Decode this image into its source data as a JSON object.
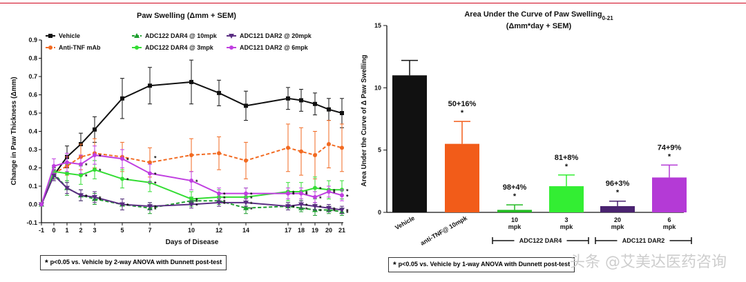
{
  "left_title": "Paw Swelling (Δmm + SEM)",
  "right_title_main": "Area  Under the Curve of Paw Swelling",
  "right_title_sub": "0-21",
  "right_title_line2": "(Δmm*day + SEM)",
  "left_note": "p<0.05 vs. Vehicle by 2-way ANOVA with Dunnett post-test",
  "right_note": "p<0.05 vs. Vehicle by 1-way ANOVA with Dunnett post-test",
  "note_star": "*",
  "watermark": "头条 @艾美达医药咨询",
  "chart_data": [
    {
      "type": "line",
      "title": "Paw Swelling (Δmm + SEM)",
      "xlabel": "Days of Disease",
      "ylabel": "Change in Paw Thickness (Δmm)",
      "xlim": [
        -1,
        21.5
      ],
      "ylim": [
        -0.1,
        0.9
      ],
      "x_ticks": [
        -1,
        0,
        1,
        2,
        3,
        5,
        7,
        10,
        12,
        14,
        17,
        18,
        19,
        20,
        21
      ],
      "y_ticks": [
        -0.1,
        0.0,
        0.1,
        0.2,
        0.3,
        0.4,
        0.5,
        0.6,
        0.7,
        0.8,
        0.9
      ],
      "x": [
        -1,
        0,
        1,
        2,
        3,
        5,
        7,
        10,
        12,
        14,
        17,
        18,
        19,
        20,
        21
      ],
      "series": [
        {
          "name": "Vehicle",
          "color": "#111111",
          "marker": "square",
          "dash": false,
          "values": [
            0.0,
            0.16,
            0.26,
            0.33,
            0.41,
            0.58,
            0.65,
            0.67,
            0.61,
            0.54,
            0.58,
            0.57,
            0.55,
            0.52,
            0.5
          ],
          "err": [
            0.0,
            0.03,
            0.06,
            0.06,
            0.07,
            0.11,
            0.1,
            0.12,
            0.07,
            0.08,
            0.06,
            0.06,
            0.06,
            0.06,
            0.08
          ]
        },
        {
          "name": "Anti-TNF mAb",
          "color": "#f26a21",
          "marker": "circle",
          "dash": true,
          "values": [
            0.0,
            0.17,
            0.21,
            0.26,
            0.28,
            0.26,
            0.23,
            0.27,
            0.28,
            0.24,
            0.31,
            0.29,
            0.27,
            0.33,
            0.31
          ],
          "err": [
            0.0,
            0.03,
            0.05,
            0.07,
            0.08,
            0.08,
            0.08,
            0.09,
            0.09,
            0.1,
            0.13,
            0.13,
            0.13,
            0.13,
            0.13
          ]
        },
        {
          "name": "ADC122 DAR4 @ 10mpk",
          "color": "#1e9e2e",
          "marker": "triangle",
          "dash": true,
          "values": [
            0.0,
            0.17,
            0.09,
            0.05,
            0.03,
            0.0,
            -0.02,
            0.02,
            0.02,
            -0.02,
            -0.01,
            -0.02,
            -0.03,
            -0.03,
            -0.04
          ],
          "err": [
            0.0,
            0.03,
            0.04,
            0.03,
            0.03,
            0.03,
            0.03,
            0.02,
            0.02,
            0.03,
            0.02,
            0.02,
            0.03,
            0.02,
            0.02
          ]
        },
        {
          "name": "ADC122 DAR4 @ 3mpk",
          "color": "#33dd33",
          "marker": "circle",
          "dash": false,
          "values": [
            0.0,
            0.18,
            0.17,
            0.16,
            0.19,
            0.14,
            0.12,
            0.03,
            0.04,
            0.04,
            0.07,
            0.07,
            0.09,
            0.08,
            0.08
          ],
          "err": [
            0.0,
            0.03,
            0.05,
            0.05,
            0.05,
            0.05,
            0.05,
            0.04,
            0.04,
            0.05,
            0.05,
            0.05,
            0.06,
            0.05,
            0.05
          ]
        },
        {
          "name": "ADC121 DAR2 @ 20mpk",
          "color": "#5a2d82",
          "marker": "triangle-down",
          "dash": false,
          "values": [
            0.0,
            0.16,
            0.09,
            0.05,
            0.04,
            0.0,
            -0.01,
            0.0,
            0.01,
            0.01,
            -0.01,
            0.0,
            -0.01,
            -0.02,
            -0.03
          ],
          "err": [
            0.0,
            0.03,
            0.03,
            0.03,
            0.03,
            0.03,
            0.02,
            0.02,
            0.02,
            0.02,
            0.02,
            0.02,
            0.02,
            0.02,
            0.02
          ]
        },
        {
          "name": "ADC121 DAR2 @ 6mpk",
          "color": "#c03ee0",
          "marker": "circle",
          "dash": false,
          "values": [
            0.0,
            0.21,
            0.23,
            0.22,
            0.27,
            0.25,
            0.17,
            0.13,
            0.06,
            0.06,
            0.06,
            0.06,
            0.04,
            0.07,
            0.05
          ],
          "err": [
            0.0,
            0.04,
            0.05,
            0.05,
            0.05,
            0.05,
            0.05,
            0.05,
            0.03,
            0.03,
            0.03,
            0.03,
            0.03,
            0.03,
            0.03
          ]
        }
      ],
      "significance_label": "*",
      "legend_position": "top"
    },
    {
      "type": "bar",
      "title": "Area  Under the Curve of Paw Swelling0-21 (Δmm*day + SEM)",
      "ylabel": "Area Under the Curve of  Δ Paw Swelling",
      "ylim": [
        0,
        15
      ],
      "y_ticks": [
        0,
        5,
        10,
        15
      ],
      "categories": [
        "Vehicle",
        "anti-TNF@ 10mpk",
        "10 mpk",
        "3 mpk",
        "20 mpk",
        "6 mpk"
      ],
      "category_lines": [
        [
          "Vehicle"
        ],
        [
          "anti-TNF@ 10mpk"
        ],
        [
          "10",
          "mpk"
        ],
        [
          "3",
          "mpk"
        ],
        [
          "20",
          "mpk"
        ],
        [
          "6",
          "mpk"
        ]
      ],
      "values": [
        11.0,
        5.5,
        0.2,
        2.1,
        0.5,
        2.8
      ],
      "err": [
        1.2,
        1.8,
        0.4,
        0.9,
        0.4,
        1.0
      ],
      "colors": [
        "#111111",
        "#f25c19",
        "#22bb22",
        "#33ee33",
        "#4a2370",
        "#b43ad6"
      ],
      "annotations": [
        "",
        "50+16%",
        "98+4%",
        "81+8%",
        "96+3%",
        "74+9%"
      ],
      "significance_label": "*",
      "groups": [
        {
          "label": "ADC122 DAR4",
          "categories": [
            "10 mpk",
            "3 mpk"
          ]
        },
        {
          "label": "ADC121 DAR2",
          "categories": [
            "20 mpk",
            "6 mpk"
          ]
        }
      ]
    }
  ]
}
